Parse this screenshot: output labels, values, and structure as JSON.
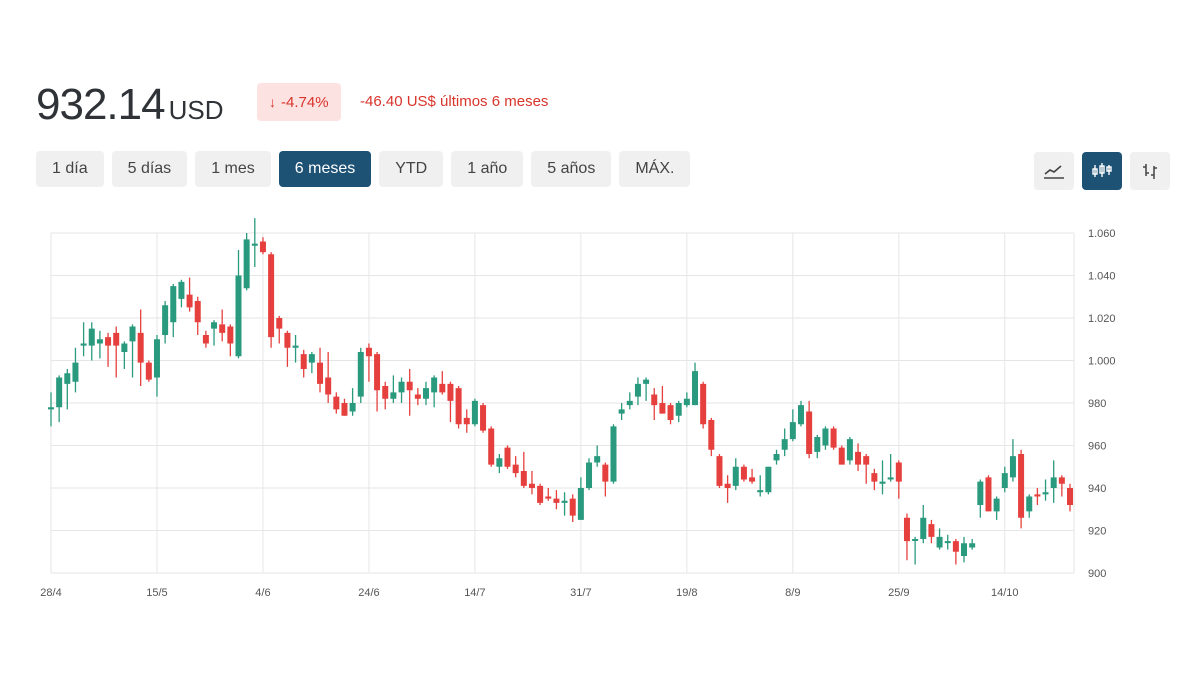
{
  "header": {
    "price": "932.14",
    "currency": "USD",
    "change_pct": "-4.74%",
    "change_icon": "arrow-down-icon",
    "change_abs": "-46.40 US$ últimos 6 meses"
  },
  "ranges": [
    {
      "label": "1 día",
      "active": false
    },
    {
      "label": "5 días",
      "active": false
    },
    {
      "label": "1 mes",
      "active": false
    },
    {
      "label": "6 meses",
      "active": true
    },
    {
      "label": "YTD",
      "active": false
    },
    {
      "label": "1 año",
      "active": false
    },
    {
      "label": "5 años",
      "active": false
    },
    {
      "label": "MÁX.",
      "active": false
    }
  ],
  "chart_types": [
    {
      "icon": "line-chart-icon",
      "active": false
    },
    {
      "icon": "candlestick-icon",
      "active": true
    },
    {
      "icon": "ohlc-bars-icon",
      "active": false
    }
  ],
  "colors": {
    "up": "#2a9a7e",
    "down": "#e5403e",
    "grid": "#e6e6e6",
    "accent": "#1d5275",
    "negative": "#d9342b"
  },
  "chart_data": {
    "type": "candlestick",
    "ylim": [
      900,
      1060
    ],
    "y_ticks": [
      {
        "value": 1060,
        "label": "1.060"
      },
      {
        "value": 1040,
        "label": "1.040"
      },
      {
        "value": 1020,
        "label": "1.020"
      },
      {
        "value": 1000,
        "label": "1.000"
      },
      {
        "value": 980,
        "label": "980"
      },
      {
        "value": 960,
        "label": "960"
      },
      {
        "value": 940,
        "label": "940"
      },
      {
        "value": 920,
        "label": "920"
      },
      {
        "value": 900,
        "label": "900"
      }
    ],
    "x_ticks": [
      {
        "index": 0,
        "label": "28/4"
      },
      {
        "index": 13,
        "label": "15/5"
      },
      {
        "index": 26,
        "label": "4/6"
      },
      {
        "index": 39,
        "label": "24/6"
      },
      {
        "index": 52,
        "label": "14/7"
      },
      {
        "index": 65,
        "label": "31/7"
      },
      {
        "index": 78,
        "label": "19/8"
      },
      {
        "index": 91,
        "label": "8/9"
      },
      {
        "index": 104,
        "label": "25/9"
      },
      {
        "index": 117,
        "label": "14/10"
      }
    ],
    "grid": true,
    "y_axis_side": "right",
    "ohlc_fields": [
      "open",
      "high",
      "low",
      "close"
    ],
    "candles": [
      [
        977,
        985,
        969,
        978
      ],
      [
        978,
        993,
        971,
        992
      ],
      [
        989,
        996,
        977,
        994
      ],
      [
        990,
        1006,
        985,
        999
      ],
      [
        1007,
        1018,
        1002,
        1008
      ],
      [
        1007,
        1018,
        1000,
        1015
      ],
      [
        1008,
        1014,
        1001,
        1010
      ],
      [
        1011,
        1013,
        997,
        1007
      ],
      [
        1013,
        1016,
        992,
        1007
      ],
      [
        1004,
        1009,
        996,
        1008
      ],
      [
        1009,
        1017,
        992,
        1016
      ],
      [
        1013,
        1024,
        988,
        999
      ],
      [
        999,
        1000,
        990,
        991
      ],
      [
        992,
        1012,
        983,
        1010
      ],
      [
        1012,
        1028,
        1008,
        1026
      ],
      [
        1018,
        1036,
        1011,
        1035
      ],
      [
        1029,
        1038,
        1025,
        1037
      ],
      [
        1031,
        1039,
        1023,
        1025
      ],
      [
        1028,
        1030,
        1012,
        1018
      ],
      [
        1012,
        1014,
        1006,
        1008
      ],
      [
        1015,
        1019,
        1007,
        1018
      ],
      [
        1017,
        1024,
        1009,
        1013
      ],
      [
        1016,
        1017,
        1002,
        1008
      ],
      [
        1002,
        1052,
        1001,
        1040
      ],
      [
        1034,
        1060,
        1033,
        1057
      ],
      [
        1054,
        1067,
        1044,
        1055
      ],
      [
        1056,
        1058,
        1050,
        1051
      ],
      [
        1050,
        1051,
        1006,
        1011
      ],
      [
        1020,
        1021,
        1008,
        1015
      ],
      [
        1013,
        1014,
        997,
        1006
      ],
      [
        1006,
        1012,
        999,
        1007
      ],
      [
        1003,
        1005,
        992,
        996
      ],
      [
        999,
        1004,
        994,
        1003
      ],
      [
        999,
        1006,
        985,
        989
      ],
      [
        992,
        1004,
        980,
        984
      ],
      [
        983,
        985,
        975,
        977
      ],
      [
        980,
        982,
        974,
        974
      ],
      [
        976,
        987,
        974,
        980
      ],
      [
        983,
        1006,
        980,
        1004
      ],
      [
        1006,
        1008,
        990,
        1002
      ],
      [
        1003,
        1004,
        976,
        986
      ],
      [
        988,
        990,
        977,
        982
      ],
      [
        982,
        993,
        980,
        985
      ],
      [
        985,
        992,
        980,
        990
      ],
      [
        990,
        996,
        974,
        986
      ],
      [
        984,
        987,
        979,
        982
      ],
      [
        982,
        990,
        979,
        987
      ],
      [
        985,
        993,
        978,
        992
      ],
      [
        989,
        995,
        984,
        985
      ],
      [
        989,
        990,
        971,
        981
      ],
      [
        987,
        988,
        968,
        970
      ],
      [
        973,
        977,
        966,
        970
      ],
      [
        970,
        982,
        969,
        981
      ],
      [
        979,
        980,
        966,
        967
      ],
      [
        968,
        969,
        950,
        951
      ],
      [
        950,
        956,
        947,
        954
      ],
      [
        959,
        960,
        949,
        950
      ],
      [
        951,
        955,
        945,
        947
      ],
      [
        948,
        957,
        940,
        941
      ],
      [
        942,
        948,
        937,
        940
      ],
      [
        941,
        942,
        932,
        933
      ],
      [
        936,
        940,
        934,
        935
      ],
      [
        935,
        939,
        930,
        933
      ],
      [
        933,
        938,
        927,
        934
      ],
      [
        935,
        937,
        924,
        927
      ],
      [
        925,
        945,
        925,
        940
      ],
      [
        940,
        954,
        939,
        952
      ],
      [
        952,
        960,
        950,
        955
      ],
      [
        951,
        952,
        936,
        943
      ],
      [
        943,
        970,
        942,
        969
      ],
      [
        975,
        980,
        972,
        977
      ],
      [
        979,
        985,
        977,
        981
      ],
      [
        983,
        992,
        979,
        989
      ],
      [
        989,
        992,
        981,
        991
      ],
      [
        984,
        987,
        972,
        979
      ],
      [
        980,
        988,
        975,
        975
      ],
      [
        979,
        980,
        970,
        972
      ],
      [
        974,
        981,
        971,
        980
      ],
      [
        979,
        985,
        978,
        982
      ],
      [
        979,
        999,
        979,
        995
      ],
      [
        989,
        990,
        968,
        970
      ],
      [
        972,
        973,
        955,
        958
      ],
      [
        955,
        956,
        940,
        941
      ],
      [
        942,
        946,
        933,
        940
      ],
      [
        941,
        954,
        939,
        950
      ],
      [
        950,
        951,
        943,
        944
      ],
      [
        945,
        949,
        942,
        943
      ],
      [
        938,
        946,
        936,
        939
      ],
      [
        938,
        950,
        937,
        950
      ],
      [
        953,
        958,
        951,
        956
      ],
      [
        958,
        968,
        955,
        963
      ],
      [
        963,
        977,
        962,
        971
      ],
      [
        970,
        981,
        969,
        979
      ],
      [
        976,
        981,
        954,
        956
      ],
      [
        957,
        965,
        954,
        964
      ],
      [
        960,
        969,
        958,
        968
      ],
      [
        968,
        969,
        958,
        959
      ],
      [
        959,
        960,
        951,
        951
      ],
      [
        953,
        964,
        951,
        963
      ],
      [
        957,
        961,
        948,
        951
      ],
      [
        955,
        956,
        942,
        951
      ],
      [
        947,
        949,
        939,
        943
      ],
      [
        942,
        953,
        937,
        943
      ],
      [
        944,
        956,
        943,
        945
      ],
      [
        952,
        953,
        935,
        943
      ],
      [
        926,
        928,
        906,
        915
      ],
      [
        916,
        917,
        904,
        916
      ],
      [
        916,
        932,
        914,
        926
      ],
      [
        923,
        925,
        914,
        917
      ],
      [
        912,
        921,
        911,
        917
      ],
      [
        915,
        918,
        911,
        915
      ],
      [
        915,
        916,
        904,
        910
      ],
      [
        908,
        917,
        905,
        914
      ],
      [
        912,
        916,
        911,
        914
      ],
      [
        932,
        944,
        926,
        943
      ],
      [
        945,
        946,
        929,
        929
      ],
      [
        929,
        936,
        925,
        935
      ],
      [
        940,
        950,
        938,
        947
      ],
      [
        945,
        963,
        943,
        955
      ],
      [
        956,
        958,
        921,
        926
      ],
      [
        929,
        937,
        926,
        936
      ],
      [
        937,
        940,
        932,
        936
      ],
      [
        937,
        944,
        934,
        938
      ],
      [
        940,
        953,
        933,
        945
      ],
      [
        945,
        946,
        936,
        942
      ],
      [
        940,
        942,
        929,
        932
      ]
    ]
  }
}
